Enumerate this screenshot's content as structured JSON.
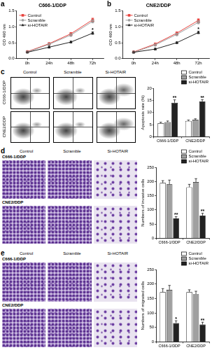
{
  "chart_data": [
    {
      "panel": "a",
      "type": "line",
      "title": "C666-1/DDP",
      "y_label": "OD 490 nm",
      "categories": [
        "0h",
        "24h",
        "48h",
        "72h"
      ],
      "ylim": [
        0,
        1.5
      ],
      "yticks": [
        {
          "value": 0,
          "label": "0.0"
        },
        0.5,
        {
          "value": 1,
          "label": "1.0"
        },
        1.5
      ],
      "grid": false,
      "legend": "upper left",
      "series": [
        {
          "name": "Control",
          "color": "#e8413c",
          "marker": "square",
          "values": [
            0.22,
            0.47,
            0.78,
            1.22
          ],
          "errors": [
            0.02,
            0.03,
            0.04,
            0.05
          ]
        },
        {
          "name": "Scramble",
          "color": "#9e9e9e",
          "marker": "circle",
          "values": [
            0.21,
            0.45,
            0.74,
            1.17
          ],
          "errors": [
            0.02,
            0.03,
            0.04,
            0.05
          ]
        },
        {
          "name": "si-HOTAIR",
          "color": "#222222",
          "marker": "triangle",
          "values": [
            0.2,
            0.36,
            0.52,
            0.8
          ],
          "errors": [
            0.02,
            0.03,
            0.03,
            0.04
          ]
        }
      ],
      "annotations": [
        {
          "text": "*",
          "series": "si-HOTAIR",
          "index": 3
        }
      ]
    },
    {
      "panel": "b",
      "type": "line",
      "title": "CNE2/DDP",
      "y_label": "OD 490 nm",
      "categories": [
        "0h",
        "24h",
        "48h",
        "72h"
      ],
      "ylim": [
        0,
        1.5
      ],
      "yticks": [
        {
          "value": 0,
          "label": "0.0"
        },
        0.5,
        {
          "value": 1,
          "label": "1.0"
        },
        1.5
      ],
      "grid": false,
      "legend": "upper left",
      "series": [
        {
          "name": "Control",
          "color": "#e8413c",
          "marker": "square",
          "values": [
            0.21,
            0.46,
            0.8,
            1.2
          ],
          "errors": [
            0.02,
            0.03,
            0.04,
            0.05
          ]
        },
        {
          "name": "Scramble",
          "color": "#9e9e9e",
          "marker": "circle",
          "values": [
            0.2,
            0.43,
            0.76,
            1.14
          ],
          "errors": [
            0.02,
            0.03,
            0.04,
            0.05
          ]
        },
        {
          "name": "si-HOTAIR",
          "color": "#222222",
          "marker": "triangle",
          "values": [
            0.2,
            0.3,
            0.5,
            0.82
          ],
          "errors": [
            0.02,
            0.03,
            0.03,
            0.04
          ]
        }
      ],
      "annotations": [
        {
          "text": "*",
          "series": "si-HOTAIR",
          "index": 3
        }
      ]
    },
    {
      "type": "bar",
      "y_label": "Apoptosis rate (%)",
      "categories": [
        "C666-1/DDP",
        "CNE2/DDP"
      ],
      "ylim": [
        0,
        20
      ],
      "yticks": [
        0,
        5,
        10,
        15,
        20
      ],
      "grid": false,
      "legend": "upper right",
      "series": [
        {
          "name": "Control",
          "color": "#ffffff",
          "values": [
            5.6,
            6.5
          ],
          "errors": [
            0.4,
            0.4
          ]
        },
        {
          "name": "Scramble",
          "color": "#a0a0a0",
          "values": [
            6,
            7
          ],
          "errors": [
            0.5,
            0.4
          ]
        },
        {
          "name": "si-HOTAIR",
          "color": "#222222",
          "values": [
            14,
            14.5
          ],
          "errors": [
            1.2,
            0.8
          ]
        }
      ],
      "annotations": [
        {
          "text": "**",
          "series": "si-HOTAIR",
          "index": 0
        },
        {
          "text": "**",
          "series": "si-HOTAIR",
          "index": 1
        }
      ]
    },
    {
      "type": "bar",
      "y_label": "Numbers of invasive cells",
      "categories": [
        "C666-1/DDP",
        "CNE2/DDP"
      ],
      "ylim": [
        0,
        250
      ],
      "yticks": [
        0,
        50,
        100,
        150,
        200,
        250
      ],
      "grid": false,
      "legend": "upper right",
      "series": [
        {
          "name": "Control",
          "color": "#ffffff",
          "values": [
            195,
            180
          ],
          "errors": [
            8,
            10
          ]
        },
        {
          "name": "Scramble",
          "color": "#a0a0a0",
          "values": [
            190,
            198
          ],
          "errors": [
            15,
            12
          ]
        },
        {
          "name": "si-HOTAIR",
          "color": "#222222",
          "values": [
            70,
            80
          ],
          "errors": [
            6,
            8
          ]
        }
      ],
      "annotations": [
        {
          "text": "**",
          "series": "si-HOTAIR",
          "index": 0
        },
        {
          "text": "**",
          "series": "si-HOTAIR",
          "index": 1
        }
      ]
    },
    {
      "type": "bar",
      "y_label": "Numbers of migrated cells",
      "categories": [
        "C666-1/DDP",
        "CNE2/DDP"
      ],
      "ylim": [
        0,
        250
      ],
      "yticks": [
        0,
        50,
        100,
        150,
        200,
        250
      ],
      "grid": false,
      "legend": "upper right",
      "series": [
        {
          "name": "Control",
          "color": "#ffffff",
          "values": [
            172,
            172
          ],
          "errors": [
            12,
            8
          ]
        },
        {
          "name": "Scramble",
          "color": "#a0a0a0",
          "values": [
            180,
            165
          ],
          "errors": [
            15,
            10
          ]
        },
        {
          "name": "si-HOTAIR",
          "color": "#222222",
          "values": [
            65,
            60
          ],
          "errors": [
            8,
            8
          ]
        }
      ],
      "annotations": [
        {
          "text": "*",
          "series": "si-HOTAIR",
          "index": 0
        },
        {
          "text": "**",
          "series": "si-HOTAIR",
          "index": 1
        }
      ]
    }
  ],
  "image_panels": [
    {
      "panel": "c",
      "style": "flow",
      "columns": [
        "Control",
        "Scramble",
        "Si-HOTAIR"
      ],
      "rows": [
        "C666-1/DDP",
        "CNE2/DDP"
      ]
    },
    {
      "panel": "d",
      "style": "stain",
      "columns": [
        "Control",
        "Scramble",
        "Si-HOTAIR"
      ],
      "rows": [
        "C666-1/DDP",
        "CNE2/DDP"
      ]
    },
    {
      "panel": "e",
      "style": "stain",
      "columns": [
        "Control",
        "Scramble",
        "Si-HOTAIR"
      ],
      "rows": [
        "C666-1/DDP",
        "CNE2/DDP"
      ]
    }
  ]
}
